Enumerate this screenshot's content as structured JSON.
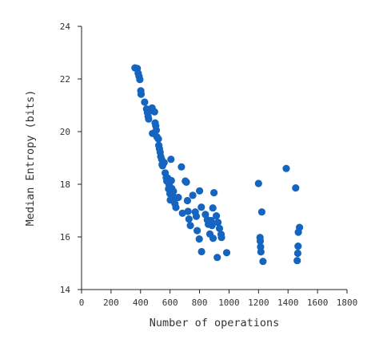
{
  "chart_data": {
    "type": "scatter",
    "title": "",
    "xlabel": "Number of operations",
    "ylabel": "Median Entropy (bits)",
    "xlim": [
      0,
      1800
    ],
    "ylim": [
      14,
      24
    ],
    "xticks": [
      "0",
      "200",
      "400",
      "600",
      "800",
      "1000",
      "1200",
      "1400",
      "1600",
      "1800"
    ],
    "yticks": [
      "14",
      "16",
      "18",
      "20",
      "22",
      "24"
    ],
    "grid": false,
    "point_color": "#1565C0",
    "points": [
      [
        362,
        22.42
      ],
      [
        378,
        22.4
      ],
      [
        384,
        22.22
      ],
      [
        390,
        22.1
      ],
      [
        395,
        21.98
      ],
      [
        402,
        21.55
      ],
      [
        404,
        21.42
      ],
      [
        428,
        21.12
      ],
      [
        441,
        20.86
      ],
      [
        447,
        20.72
      ],
      [
        451,
        20.58
      ],
      [
        455,
        20.48
      ],
      [
        466,
        20.79
      ],
      [
        478,
        20.9
      ],
      [
        481,
        19.93
      ],
      [
        495,
        20.75
      ],
      [
        499,
        20.33
      ],
      [
        503,
        20.22
      ],
      [
        507,
        20.05
      ],
      [
        511,
        19.8
      ],
      [
        521,
        19.72
      ],
      [
        524,
        19.48
      ],
      [
        528,
        19.35
      ],
      [
        533,
        19.22
      ],
      [
        537,
        19.06
      ],
      [
        543,
        18.95
      ],
      [
        546,
        18.75
      ],
      [
        549,
        18.7
      ],
      [
        560,
        18.82
      ],
      [
        567,
        18.43
      ],
      [
        574,
        18.25
      ],
      [
        578,
        18.12
      ],
      [
        583,
        18.24
      ],
      [
        590,
        17.82
      ],
      [
        594,
        17.98
      ],
      [
        599,
        17.64
      ],
      [
        602,
        17.4
      ],
      [
        606,
        18.95
      ],
      [
        609,
        18.14
      ],
      [
        612,
        17.84
      ],
      [
        619,
        17.55
      ],
      [
        623,
        17.73
      ],
      [
        629,
        17.42
      ],
      [
        633,
        17.26
      ],
      [
        640,
        17.12
      ],
      [
        656,
        17.5
      ],
      [
        677,
        18.66
      ],
      [
        684,
        16.9
      ],
      [
        704,
        18.12
      ],
      [
        711,
        18.08
      ],
      [
        718,
        17.38
      ],
      [
        722,
        16.97
      ],
      [
        728,
        16.68
      ],
      [
        738,
        16.43
      ],
      [
        754,
        17.58
      ],
      [
        771,
        16.95
      ],
      [
        778,
        16.78
      ],
      [
        784,
        16.24
      ],
      [
        798,
        15.92
      ],
      [
        800,
        17.75
      ],
      [
        812,
        17.13
      ],
      [
        814,
        15.44
      ],
      [
        840,
        16.85
      ],
      [
        853,
        16.65
      ],
      [
        860,
        16.48
      ],
      [
        870,
        16.11
      ],
      [
        879,
        16.62
      ],
      [
        885,
        16.43
      ],
      [
        890,
        17.1
      ],
      [
        892,
        15.95
      ],
      [
        898,
        17.68
      ],
      [
        914,
        16.8
      ],
      [
        920,
        15.22
      ],
      [
        925,
        16.55
      ],
      [
        935,
        16.32
      ],
      [
        946,
        16.1
      ],
      [
        949,
        15.98
      ],
      [
        984,
        15.4
      ],
      [
        1200,
        18.03
      ],
      [
        1210,
        15.98
      ],
      [
        1212,
        15.84
      ],
      [
        1214,
        15.62
      ],
      [
        1216,
        15.43
      ],
      [
        1222,
        16.95
      ],
      [
        1230,
        15.07
      ],
      [
        1388,
        18.6
      ],
      [
        1452,
        17.86
      ],
      [
        1462,
        15.1
      ],
      [
        1466,
        15.38
      ],
      [
        1468,
        15.65
      ],
      [
        1470,
        16.18
      ],
      [
        1478,
        16.36
      ]
    ]
  }
}
